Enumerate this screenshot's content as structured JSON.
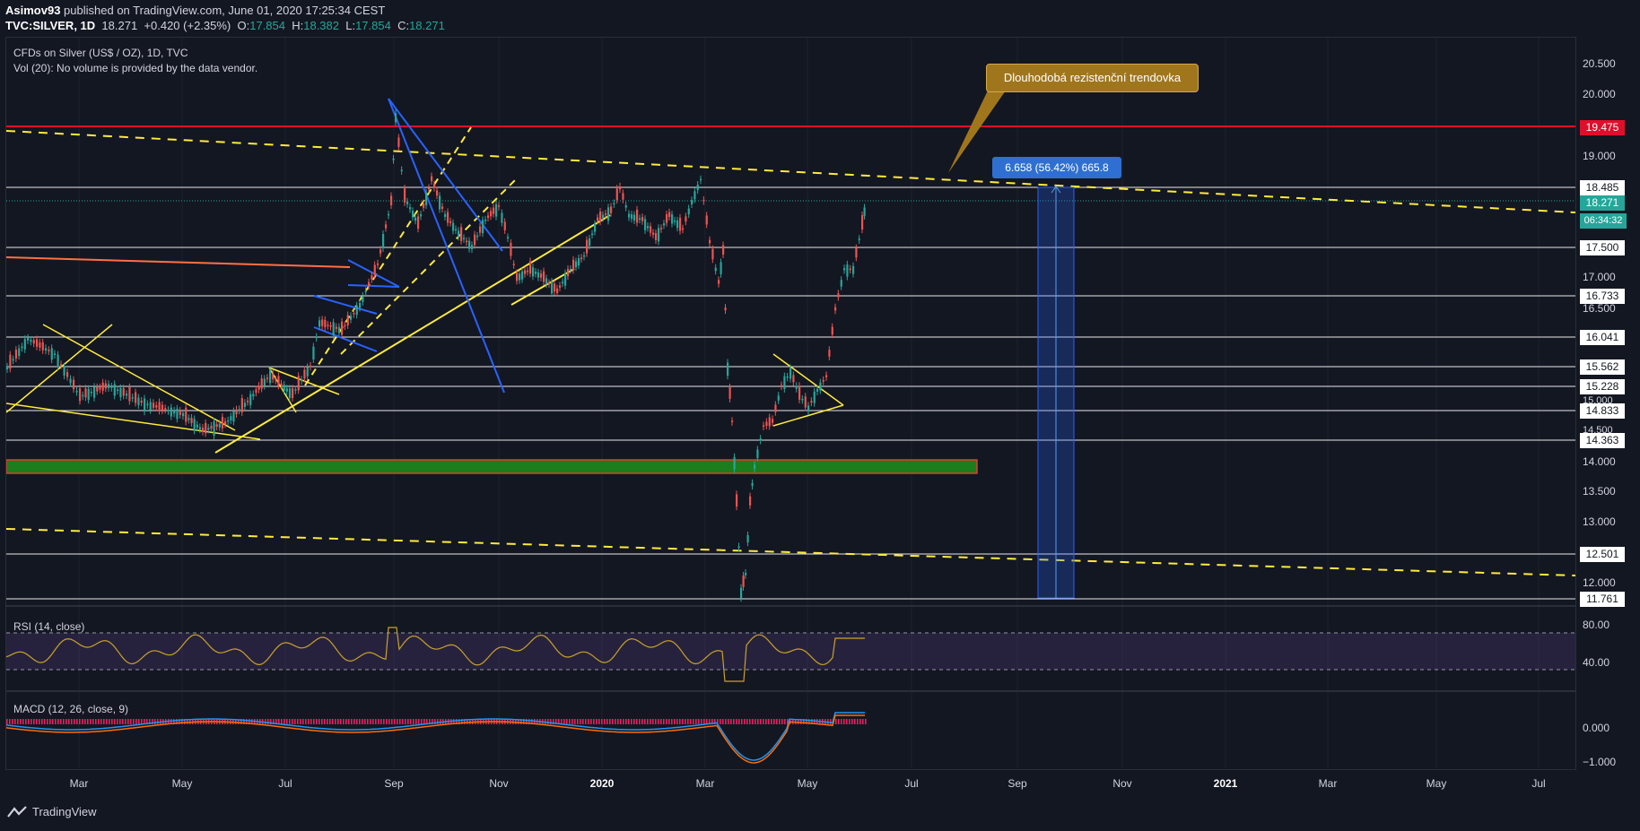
{
  "header": {
    "author": "Asimov93",
    "published": "published on TradingView.com, June 01, 2020 17:25:34 CEST",
    "symbol": "TVC:SILVER, 1D",
    "last": "18.271",
    "change": "+0.420 (+2.35%)",
    "o_label": "O:",
    "o_value": "17.854",
    "h_label": "H:",
    "h_value": "18.382",
    "l_label": "L:",
    "l_value": "17.854",
    "c_label": "C:",
    "c_value": "18.271"
  },
  "legend": {
    "title": "CFDs on Silver (US$ / OZ), 1D, TVC",
    "vol": "Vol (20): No volume is provided by the data vendor.",
    "rsi": "RSI (14, close)",
    "macd": "MACD (12, 26, close, 9)"
  },
  "price_axis": [
    "20.500",
    "20.000",
    "19.000",
    "17.000",
    "16.500",
    "13.500",
    "13.000",
    "12.000"
  ],
  "price_labels": {
    "p19475": "19.475",
    "p18485": "18.485",
    "p18271": "18.271",
    "countdown": "06:34:32",
    "p17500": "17.500",
    "p16733": "16.733",
    "p16041": "16.041",
    "p15562": "15.562",
    "p15228": "15.228",
    "p15000": "15.000",
    "p14833": "14.833",
    "p14500": "14.500",
    "p14363": "14.363",
    "p14000": "14.000",
    "p12501": "12.501",
    "p11761": "11.761"
  },
  "rsi_axis": [
    "80.00",
    "40.00"
  ],
  "macd_axis": [
    "0.000",
    "−1.000"
  ],
  "time_axis": {
    "mar": "Mar",
    "may": "May",
    "jul": "Jul",
    "sep": "Sep",
    "nov": "Nov",
    "y2020": "2020",
    "mar2": "Mar",
    "may2": "May",
    "jul2": "Jul",
    "sep2": "Sep",
    "nov2": "Nov",
    "y2021": "2021",
    "mar3": "Mar",
    "may3": "May",
    "jul3": "Jul"
  },
  "annotations": {
    "callout": "Dlouhodobá rezistenční trendovka",
    "measure": "6.658 (56.42%) 665.8"
  },
  "footer": {
    "brand": "TradingView"
  },
  "colors": {
    "background": "#131722",
    "up": "#26a69a",
    "down": "#ef5350",
    "resistance": "#e00e2b",
    "trendline": "#ffeb3b",
    "channel": "#2962ff",
    "support_zone": "#1b7d1b",
    "rsi_line": "#c9a227",
    "rsi_band": "#7e57c2",
    "macd": "#2196f3",
    "signal": "#ff6d00",
    "histogram": "#e91e63"
  }
}
